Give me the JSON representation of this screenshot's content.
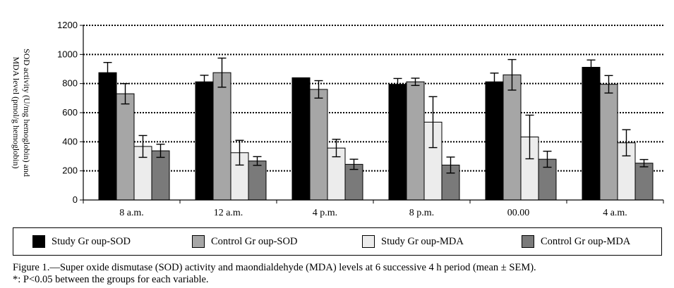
{
  "chart_data": {
    "type": "bar",
    "title": "",
    "xlabel": "",
    "ylabel_line1": "SOD activity (U/mg hemoglobin) and",
    "ylabel_line2": "MDA level (pmol/g hemoglobin)",
    "ylim": [
      0,
      1200
    ],
    "yticks": [
      0,
      200,
      400,
      600,
      800,
      1000,
      1200
    ],
    "grid": true,
    "categories": [
      "8 a.m.",
      "12 a.m.",
      "4 p.m.",
      "8 p.m.",
      "00.00",
      "4 a.m."
    ],
    "series": [
      {
        "name": "Study Gr oup-SOD",
        "color": "#000000",
        "values": [
          875,
          812,
          840,
          795,
          812,
          912
        ],
        "errors": [
          70,
          45,
          0,
          40,
          60,
          50
        ]
      },
      {
        "name": "Control Gr oup-SOD",
        "color": "#a6a6a6",
        "values": [
          730,
          875,
          760,
          812,
          860,
          795
        ],
        "errors": [
          70,
          100,
          60,
          25,
          105,
          60
        ]
      },
      {
        "name": "Study Gr oup-MDA",
        "color": "#ececec",
        "values": [
          368,
          325,
          357,
          535,
          433,
          393
        ],
        "errors": [
          75,
          85,
          60,
          175,
          150,
          90
        ]
      },
      {
        "name": "Control Gr oup-MDA",
        "color": "#7a7a7a",
        "values": [
          338,
          268,
          245,
          240,
          280,
          253
        ],
        "errors": [
          45,
          30,
          35,
          55,
          55,
          25
        ]
      }
    ]
  },
  "caption": {
    "line1": "Figure 1.—Super oxide dismutase (SOD) activity and maondialdehyde (MDA) levels at 6 successive 4 h period (mean ± SEM).",
    "line2": "*: P<0.05 between the groups for each variable."
  }
}
